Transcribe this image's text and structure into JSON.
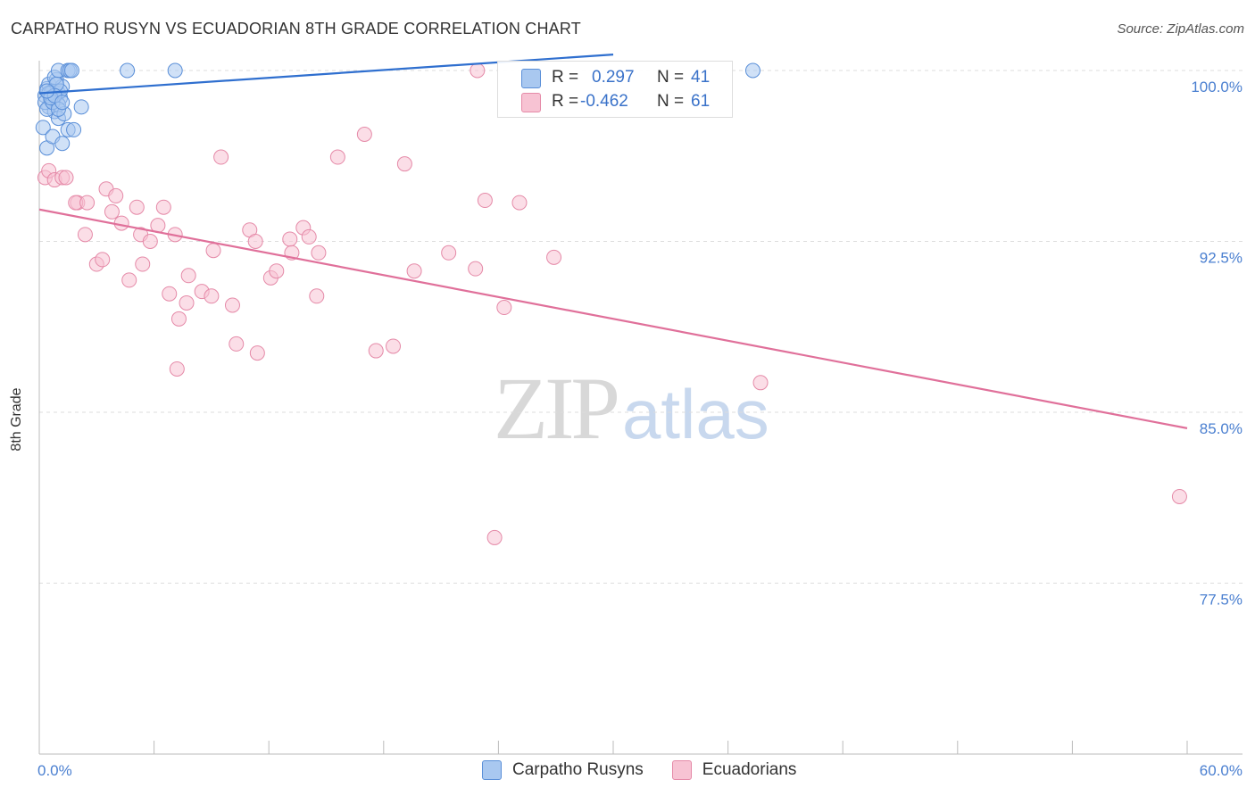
{
  "title": "CARPATHO RUSYN VS ECUADORIAN 8TH GRADE CORRELATION CHART",
  "source": "Source: ZipAtlas.com",
  "watermark": {
    "zip": "ZIP",
    "atlas": "atlas"
  },
  "legend": {
    "r_label": "R =",
    "n_label": "N =",
    "rows": [
      {
        "name": "Carpatho Rusyns",
        "r": "0.297",
        "n": "41"
      },
      {
        "name": "Ecuadorians",
        "r": "-0.462",
        "n": "61"
      }
    ]
  },
  "colors": {
    "blue_fill": "#a9c8f0",
    "blue_stroke": "#5a8fd8",
    "blue_line": "#2f6fcf",
    "pink_fill": "#f7c3d3",
    "pink_stroke": "#e58aa8",
    "pink_line": "#e0709a",
    "grid": "#dddddd",
    "axis": "#bbbbbb",
    "tick_text": "#4a7fd0"
  },
  "chart_data": {
    "type": "scatter",
    "title": "CARPATHO RUSYN VS ECUADORIAN 8TH GRADE CORRELATION CHART",
    "xlabel": "",
    "ylabel": "8th Grade",
    "xlim": [
      0,
      60
    ],
    "ylim": [
      70.0,
      100.9
    ],
    "x_tick_labels": [
      "0.0%",
      "60.0%"
    ],
    "y_ticks": [
      100.0,
      92.5,
      85.0,
      77.5
    ],
    "y_tick_labels": [
      "100.0%",
      "92.5%",
      "85.0%",
      "77.5%"
    ],
    "series": [
      {
        "name": "Carpatho Rusyns",
        "r": 0.297,
        "n": 41,
        "trend": {
          "x": [
            0,
            30
          ],
          "y": [
            99.0,
            100.7
          ]
        },
        "points": [
          [
            0.3,
            98.9
          ],
          [
            0.4,
            99.2
          ],
          [
            0.5,
            98.4
          ],
          [
            0.5,
            99.4
          ],
          [
            0.6,
            98.7
          ],
          [
            0.7,
            99.1
          ],
          [
            0.8,
            98.2
          ],
          [
            0.9,
            99.6
          ],
          [
            1.0,
            99.0
          ],
          [
            1.1,
            98.8
          ],
          [
            1.2,
            99.3
          ],
          [
            0.3,
            98.6
          ],
          [
            0.4,
            98.3
          ],
          [
            0.6,
            99.0
          ],
          [
            0.8,
            99.7
          ],
          [
            1.0,
            98.5
          ],
          [
            0.2,
            97.5
          ],
          [
            0.4,
            96.6
          ],
          [
            0.7,
            97.1
          ],
          [
            1.0,
            97.9
          ],
          [
            1.1,
            99.1
          ],
          [
            1.2,
            96.8
          ],
          [
            1.5,
            97.4
          ],
          [
            1.8,
            97.4
          ],
          [
            2.2,
            98.4
          ],
          [
            1.0,
            100.0
          ],
          [
            1.5,
            100.0
          ],
          [
            1.6,
            100.0
          ],
          [
            1.7,
            100.0
          ],
          [
            4.6,
            100.0
          ],
          [
            7.1,
            100.0
          ],
          [
            37.3,
            100.0
          ],
          [
            0.9,
            99.4
          ],
          [
            0.5,
            99.0
          ],
          [
            0.7,
            98.6
          ],
          [
            1.3,
            98.1
          ],
          [
            1.0,
            98.3
          ],
          [
            0.6,
            98.8
          ],
          [
            0.8,
            98.9
          ],
          [
            1.2,
            98.6
          ],
          [
            0.4,
            99.1
          ]
        ]
      },
      {
        "name": "Ecuadorians",
        "r": -0.462,
        "n": 61,
        "trend": {
          "x": [
            0,
            60
          ],
          "y": [
            93.9,
            84.3
          ]
        },
        "points": [
          [
            0.3,
            95.3
          ],
          [
            0.5,
            95.6
          ],
          [
            0.8,
            95.2
          ],
          [
            1.2,
            95.3
          ],
          [
            1.4,
            95.3
          ],
          [
            2.0,
            94.2
          ],
          [
            1.9,
            94.2
          ],
          [
            2.5,
            94.2
          ],
          [
            3.5,
            94.8
          ],
          [
            4.0,
            94.5
          ],
          [
            3.8,
            93.8
          ],
          [
            5.1,
            94.0
          ],
          [
            6.5,
            94.0
          ],
          [
            4.3,
            93.3
          ],
          [
            2.4,
            92.8
          ],
          [
            5.3,
            92.8
          ],
          [
            5.8,
            92.5
          ],
          [
            6.2,
            93.2
          ],
          [
            7.1,
            92.8
          ],
          [
            3.0,
            91.5
          ],
          [
            3.3,
            91.7
          ],
          [
            4.7,
            90.8
          ],
          [
            5.4,
            91.5
          ],
          [
            7.8,
            91.0
          ],
          [
            9.1,
            92.1
          ],
          [
            6.8,
            90.2
          ],
          [
            7.7,
            89.8
          ],
          [
            8.5,
            90.3
          ],
          [
            9.0,
            90.1
          ],
          [
            10.1,
            89.7
          ],
          [
            7.3,
            89.1
          ],
          [
            10.3,
            88.0
          ],
          [
            11.0,
            93.0
          ],
          [
            11.3,
            92.5
          ],
          [
            12.1,
            90.9
          ],
          [
            12.4,
            91.2
          ],
          [
            13.1,
            92.6
          ],
          [
            13.2,
            92.0
          ],
          [
            13.8,
            93.1
          ],
          [
            14.1,
            92.7
          ],
          [
            14.6,
            92.0
          ],
          [
            14.5,
            90.1
          ],
          [
            15.6,
            96.2
          ],
          [
            17.0,
            97.2
          ],
          [
            17.6,
            87.7
          ],
          [
            18.5,
            87.9
          ],
          [
            19.1,
            95.9
          ],
          [
            19.6,
            91.2
          ],
          [
            21.4,
            92.0
          ],
          [
            22.8,
            91.3
          ],
          [
            22.9,
            100.0
          ],
          [
            23.3,
            94.3
          ],
          [
            23.8,
            79.5
          ],
          [
            24.3,
            89.6
          ],
          [
            25.1,
            94.2
          ],
          [
            26.9,
            91.8
          ],
          [
            9.5,
            96.2
          ],
          [
            7.2,
            86.9
          ],
          [
            37.7,
            86.3
          ],
          [
            59.6,
            81.3
          ],
          [
            11.4,
            87.6
          ]
        ]
      }
    ]
  }
}
